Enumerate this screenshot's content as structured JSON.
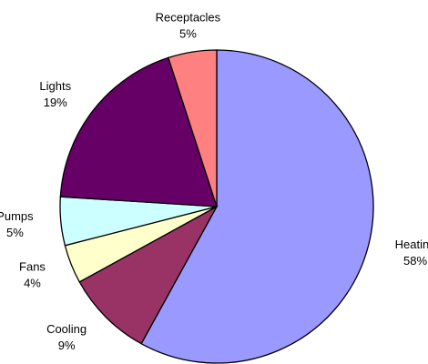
{
  "chart_data": {
    "type": "pie",
    "categories": [
      "Heating",
      "Cooling",
      "Fans",
      "Pumps",
      "Lights",
      "Receptacles"
    ],
    "values": [
      58,
      9,
      4,
      5,
      19,
      5
    ],
    "value_labels": [
      "58%",
      "9%",
      "4%",
      "5%",
      "19%",
      "5%"
    ],
    "colors": [
      "#9999ff",
      "#993366",
      "#ffffcc",
      "#ccffff",
      "#660066",
      "#ff8080"
    ]
  }
}
